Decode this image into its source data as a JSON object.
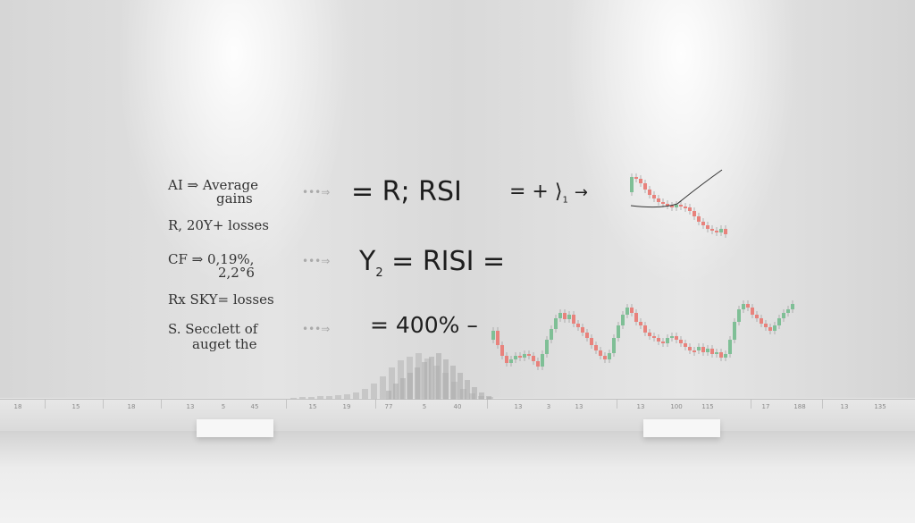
{
  "left_text": {
    "l1a": "AI ⇒ Average",
    "l1b": "gains",
    "l2": "R, 20Y+ losses",
    "l3a": "CF ⇒ 0,19%,",
    "l3b": "2,2°6",
    "l4": "Rx SKY= losses",
    "l5a": "S. Secclett of",
    "l5b": "auget the"
  },
  "arrow_glyph": "•••⇒",
  "formulas": {
    "f1": "= R;  RSI",
    "f1b": "= + ⟩",
    "f1sub": "1",
    "f1arrow": "→",
    "f2": "Y",
    "f2sub": "2",
    "f2b": "=  RISI  =",
    "f3": "= 400% –"
  },
  "axis_labels": [
    "18",
    "15",
    "18",
    "13",
    "5",
    "45",
    "15",
    "19",
    "77",
    "5",
    "40",
    "13",
    "3",
    "13",
    "13",
    "100",
    "115",
    "17",
    "188",
    "13",
    "135"
  ],
  "colors": {
    "up": "#7fbf96",
    "down": "#e8827c",
    "text": "#1e1e1e"
  }
}
